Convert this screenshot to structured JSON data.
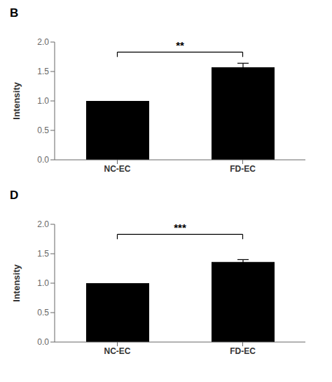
{
  "chart_data": [
    {
      "type": "bar",
      "title": "B",
      "categories": [
        "NC-EC",
        "FD-EC"
      ],
      "values": [
        1.0,
        1.57
      ],
      "errors": [
        0.0,
        0.07
      ],
      "color": "#000000",
      "ylabel": "Intensity",
      "ylim": [
        0.0,
        2.0
      ],
      "yticks": [
        {
          "value": 0.0,
          "label": "0.0"
        },
        {
          "value": 0.5,
          "label": "0.5"
        },
        {
          "value": 1.0,
          "label": "1.0"
        },
        {
          "value": 1.5,
          "label": "1.5"
        },
        {
          "value": 2.0,
          "label": "2.0"
        }
      ],
      "annotations": [
        "**"
      ]
    },
    {
      "type": "bar",
      "title": "D",
      "categories": [
        "NC-EC",
        "FD-EC"
      ],
      "values": [
        1.0,
        1.36
      ],
      "errors": [
        0.0,
        0.04
      ],
      "color": "#000000",
      "ylabel": "Intensity",
      "ylim": [
        0.0,
        2.0
      ],
      "yticks": [
        {
          "value": 0.0,
          "label": "0.0"
        },
        {
          "value": 0.5,
          "label": "0.5"
        },
        {
          "value": 1.0,
          "label": "1.0"
        },
        {
          "value": 1.5,
          "label": "1.5"
        },
        {
          "value": 2.0,
          "label": "2.0"
        }
      ],
      "annotations": [
        "***"
      ]
    }
  ]
}
